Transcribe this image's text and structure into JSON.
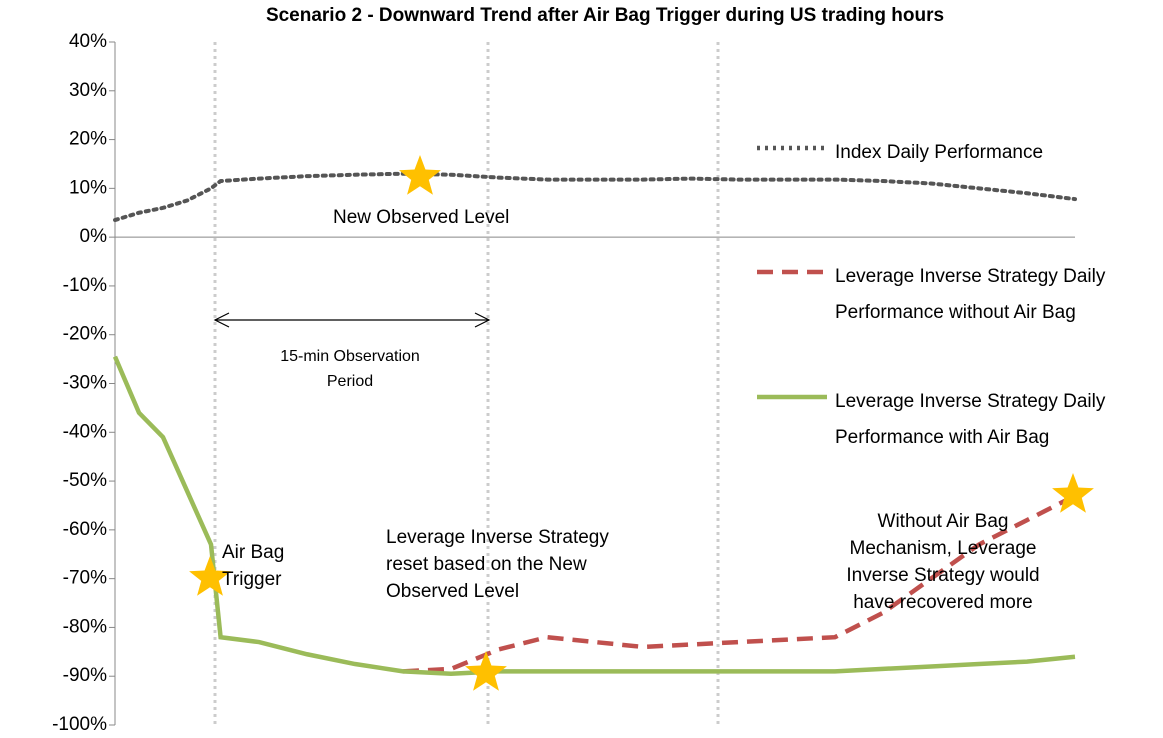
{
  "chart_data": {
    "type": "line",
    "title": "Scenario 2 - Downward Trend after Air Bag Trigger during US trading hours",
    "x": [
      0,
      0.5,
      1,
      1.5,
      2,
      2.2,
      3,
      4,
      5,
      6,
      7,
      8,
      9,
      10,
      11,
      12,
      13,
      14,
      15,
      16,
      17,
      18,
      19,
      20
    ],
    "xlim": [
      0,
      20
    ],
    "ylim": [
      -100,
      40
    ],
    "yticks": [
      {
        "value": 40,
        "label": "40%"
      },
      {
        "value": 30,
        "label": "30%"
      },
      {
        "value": 20,
        "label": "20%"
      },
      {
        "value": 10,
        "label": "10%"
      },
      {
        "value": 0,
        "label": "0%"
      },
      {
        "value": -10,
        "label": "-10%"
      },
      {
        "value": -20,
        "label": "-20%"
      },
      {
        "value": -30,
        "label": "-30%"
      },
      {
        "value": -40,
        "label": "-40%"
      },
      {
        "value": -50,
        "label": "-50%"
      },
      {
        "value": -60,
        "label": "-60%"
      },
      {
        "value": -70,
        "label": "-70%"
      },
      {
        "value": -80,
        "label": "-80%"
      },
      {
        "value": -90,
        "label": "-90%"
      },
      {
        "value": -100,
        "label": "-100%"
      }
    ],
    "series": [
      {
        "name": "Index Daily Performance",
        "color": "#555555",
        "dash": "dotted",
        "values": [
          3.5,
          5,
          6,
          7.5,
          10,
          11.5,
          12,
          12.5,
          12.8,
          13,
          12.8,
          12.2,
          11.8,
          11.8,
          11.8,
          12,
          11.8,
          11.8,
          11.8,
          11.5,
          11,
          10,
          9,
          7.8
        ]
      },
      {
        "name": "Leverage Inverse Strategy Daily Performance without Air Bag",
        "color": "#c0504d",
        "dash": "dashed",
        "values": [
          null,
          null,
          null,
          null,
          null,
          null,
          null,
          null,
          null,
          -89,
          -88.5,
          -84.5,
          -82,
          -83,
          -84,
          -83.5,
          -83,
          -82.5,
          -82,
          -77,
          -70,
          -63,
          -58,
          -53
        ]
      },
      {
        "name": "Leverage Inverse Strategy Daily Performance with Air Bag",
        "color": "#9bbb59",
        "dash": "solid",
        "values": [
          -24.5,
          -36,
          -41,
          -52,
          -63,
          -82,
          -83,
          -85.5,
          -87.5,
          -89,
          -89.5,
          -89,
          -89,
          -89,
          -89,
          -89,
          -89,
          -89,
          -89,
          -88.5,
          -88,
          -87.5,
          -87,
          -86
        ]
      }
    ],
    "annotations": [
      "New Observed Level",
      "15-min Observation Period",
      "Air Bag Trigger",
      "Leverage Inverse Strategy reset based on the New Observed Level",
      "Without Air Bag Mechanism, Leverage Inverse Strategy would have recovered more"
    ]
  }
}
